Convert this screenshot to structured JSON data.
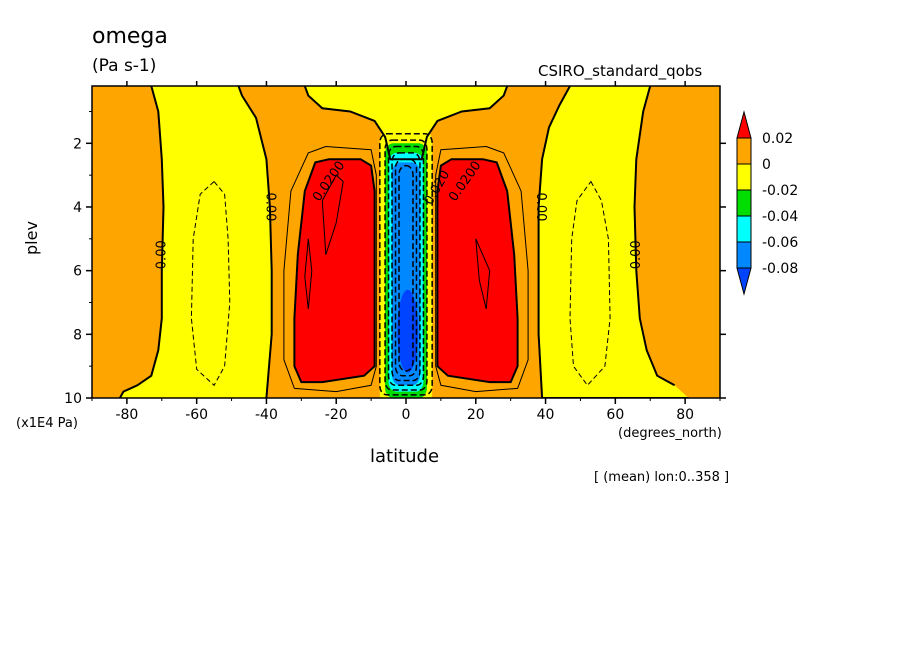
{
  "title": "omega",
  "units": "(Pa s-1)",
  "subtitle": "CSIRO_standard_qobs",
  "footnote": "[ (mean) lon:0..358 ]",
  "chart_data": {
    "type": "contour",
    "variable": "omega",
    "units": "Pa s-1",
    "xlabel": "latitude",
    "xunits": "(degrees_north)",
    "ylabel": "plev",
    "ymultiplier": "(x1E4 Pa)",
    "xlim": [
      -90,
      90
    ],
    "ylim": [
      10,
      0.2
    ],
    "xticks": [
      -80,
      -60,
      -40,
      -20,
      0,
      20,
      40,
      60,
      80
    ],
    "yticks": [
      2,
      4,
      6,
      8,
      10
    ],
    "colorbar": {
      "labels": [
        "0.02",
        "0",
        "-0.02",
        "-0.04",
        "-0.06",
        "-0.08"
      ],
      "levels": [
        0.02,
        0,
        -0.02,
        -0.04,
        -0.06,
        -0.08
      ],
      "colors": [
        "#ff0000",
        "#ffa500",
        "#ffff00",
        "#00dd00",
        "#00ffff",
        "#0088ff",
        "#0044ff"
      ]
    },
    "contour_labels": [
      {
        "text": "0.00",
        "lat": -70,
        "plev": 5.5,
        "rotate": -90
      },
      {
        "text": "0.00",
        "lat": -39,
        "plev": 4.0,
        "rotate": 90
      },
      {
        "text": "0.0200",
        "lat": -22,
        "plev": 3.2,
        "rotate": -55
      },
      {
        "text": "0.020",
        "lat": 9,
        "plev": 3.4,
        "rotate": -60
      },
      {
        "text": "0.0200",
        "lat": 17,
        "plev": 3.2,
        "rotate": -55
      },
      {
        "text": "0.00",
        "lat": 38.5,
        "plev": 4.0,
        "rotate": 90
      },
      {
        "text": "0.00",
        "lat": 66,
        "plev": 5.5,
        "rotate": -90
      }
    ],
    "features": [
      {
        "name": "subsidence-cores",
        "sign": "positive",
        "lat": [
          -25,
          22
        ],
        "plev": [
          2.5,
          9.5
        ],
        "max_level": 0.02
      },
      {
        "name": "itcz-ascent",
        "sign": "negative",
        "lat": [
          0,
          0
        ],
        "plev": [
          2.0,
          9.8
        ],
        "min_level": -0.08
      },
      {
        "name": "extratropical-ascent",
        "sign": "negative",
        "lat": [
          -55,
          55
        ],
        "plev": [
          3,
          9
        ],
        "min_level": -0.02
      }
    ]
  }
}
